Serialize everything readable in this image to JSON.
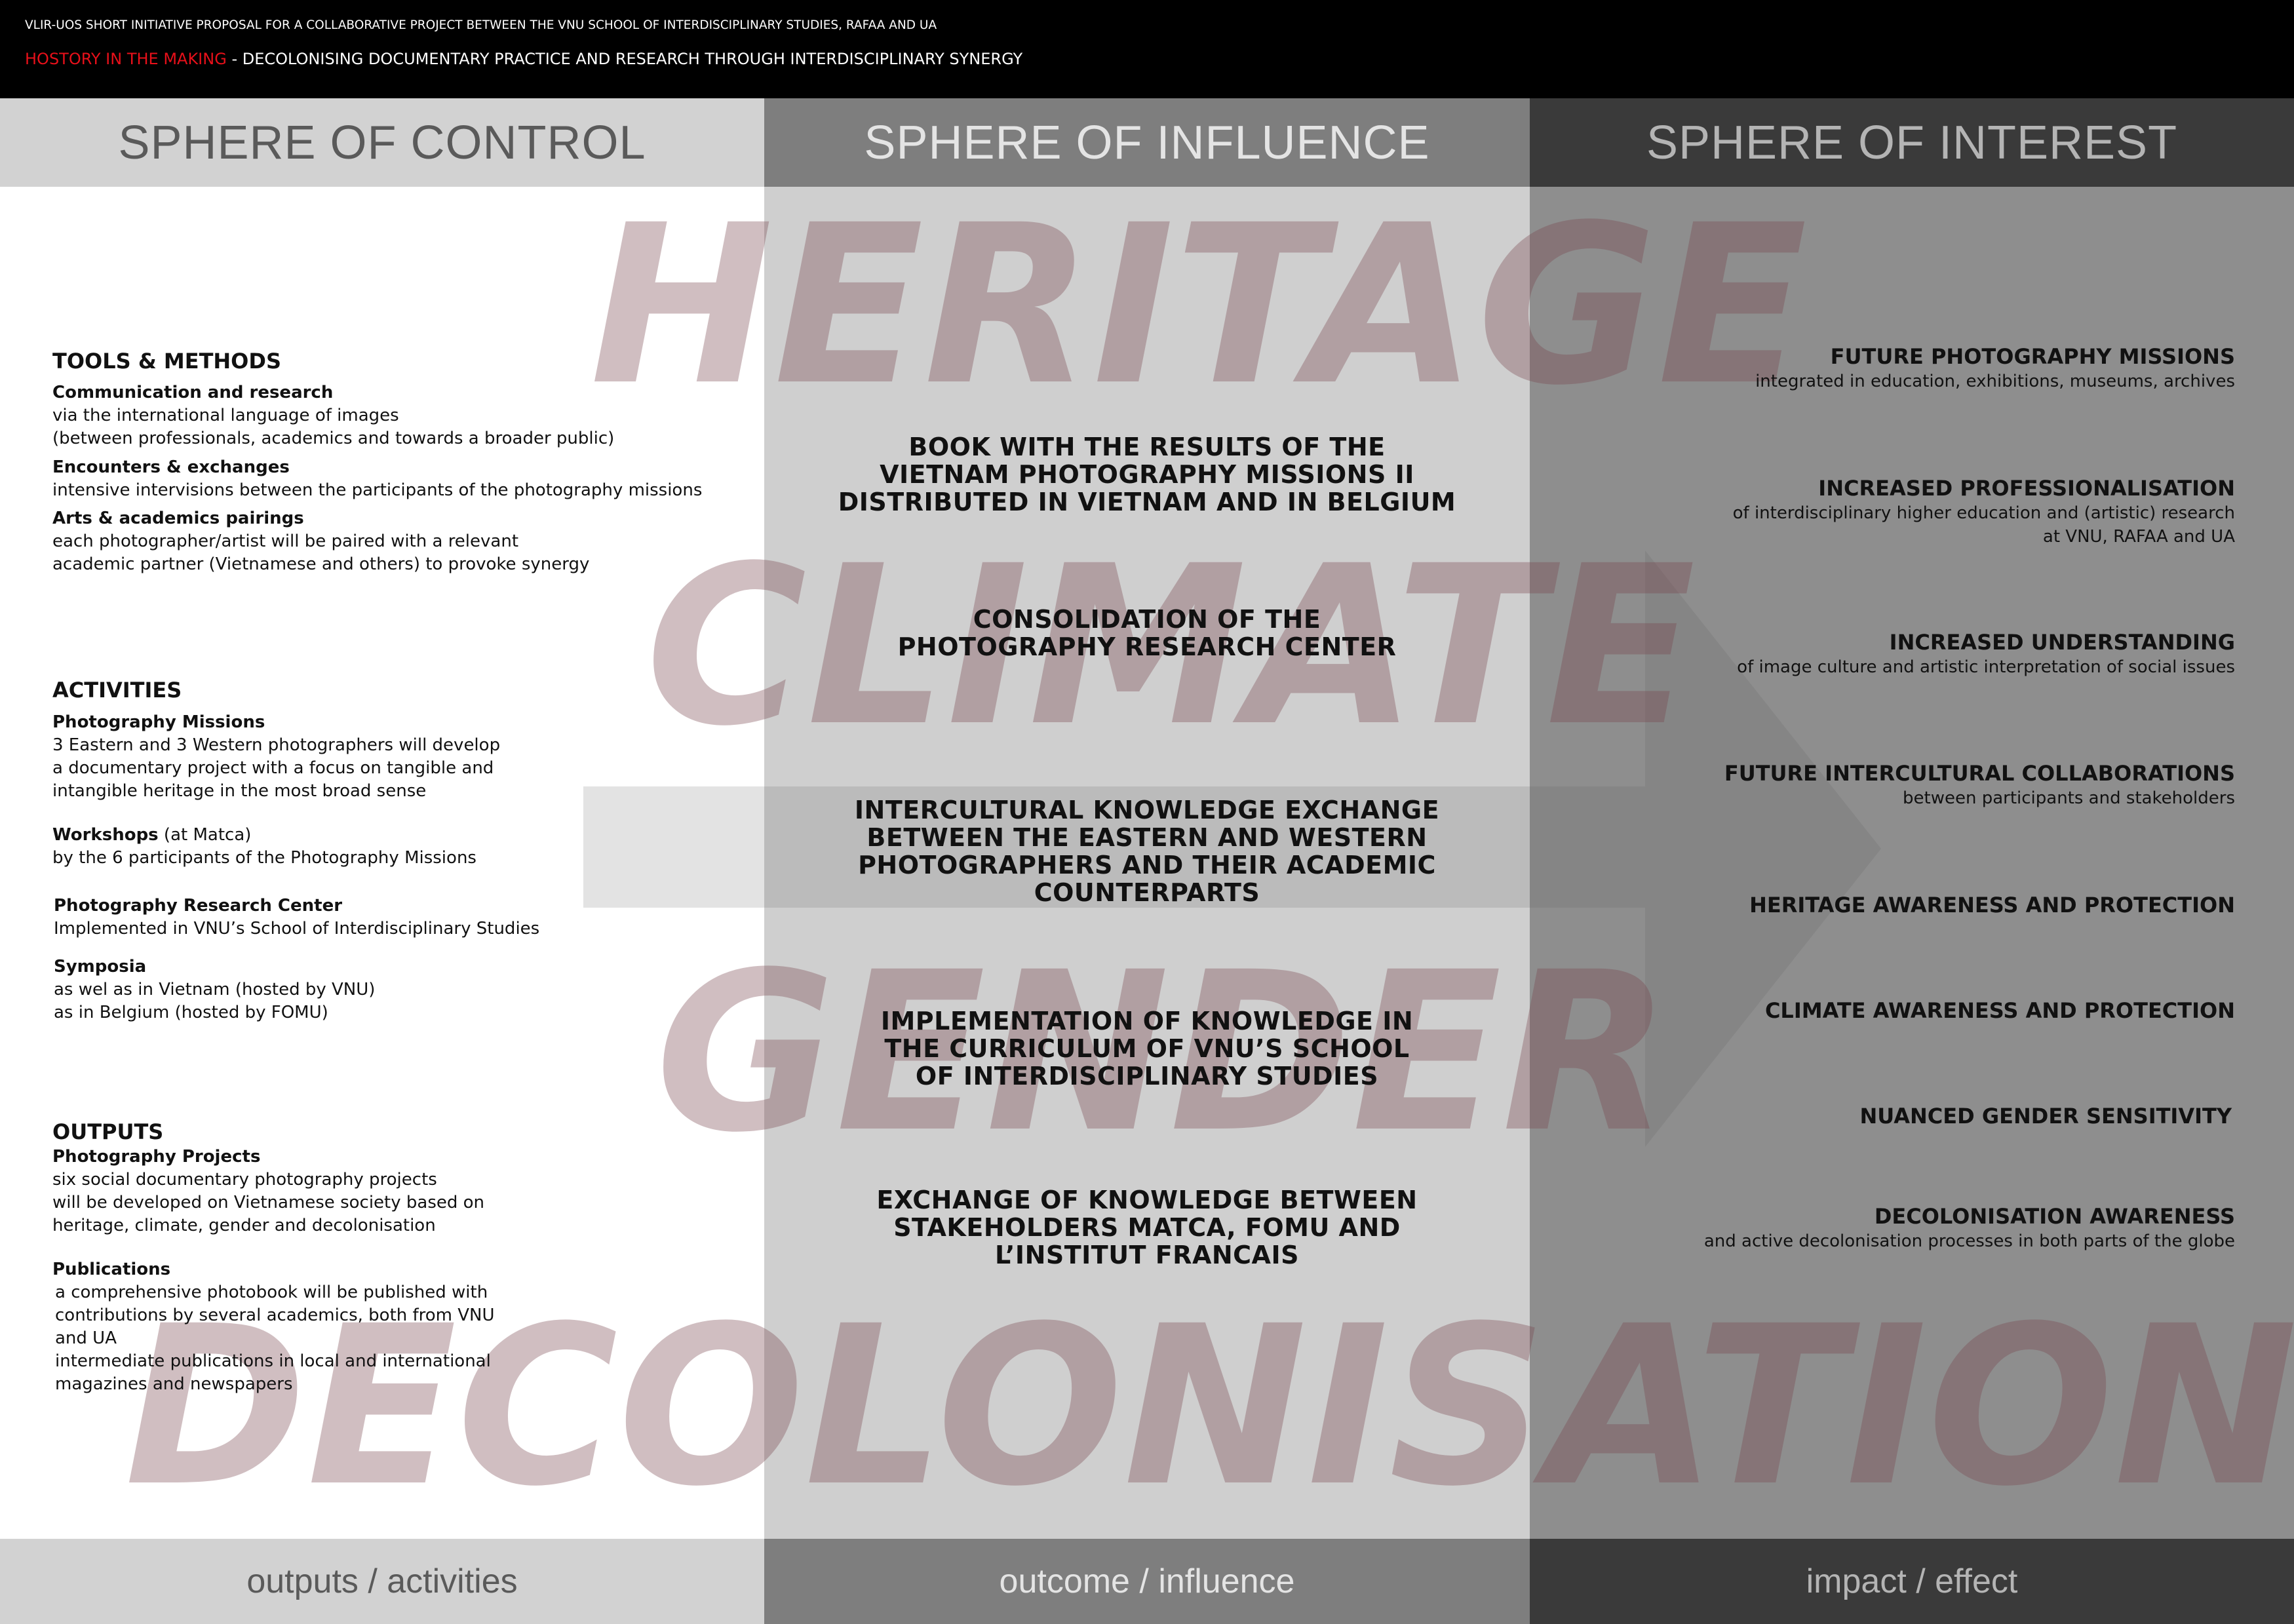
{
  "banner": {
    "line1": "VLIR-UOS SHORT INITIATIVE PROPOSAL FOR A COLLABORATIVE PROJECT BETWEEN THE VNU SCHOOL OF INTERDISCIPLINARY STUDIES, RAFAA AND UA",
    "highlight": "HOSTORY IN THE MAKING",
    "line2_rest": " - DECOLONISING DOCUMENTARY PRACTICE AND RESEARCH THROUGH INTERDISCIPLINARY SYNERGY",
    "highlight_color": "#e8101a"
  },
  "headers": [
    "SPHERE OF CONTROL",
    "SPHERE OF INFLUENCE",
    "SPHERE OF INTEREST"
  ],
  "footers": [
    "outputs / activities",
    "outcome / influence",
    "impact / effect"
  ],
  "watermarks": [
    "HERITAGE",
    "CLIMATE",
    "GENDER",
    "DECOLONISATION"
  ],
  "left": {
    "tools": {
      "heading": "TOOLS & METHODS",
      "items": [
        {
          "title": "Communication and research",
          "lines": [
            "via the international language of images",
            "(between professionals, academics and towards a broader public)"
          ]
        },
        {
          "title": "Encounters & exchanges",
          "lines": [
            "intensive intervisions between the participants of the photography missions"
          ]
        },
        {
          "title": "Arts & academics pairings",
          "lines": [
            "each photographer/artist will be paired with a relevant",
            "academic partner (Vietnamese and others) to provoke synergy"
          ]
        }
      ]
    },
    "activities": {
      "heading": "ACTIVITIES",
      "items": [
        {
          "title": "Photography Missions",
          "lines": [
            "3 Eastern and 3 Western photographers will develop",
            "a documentary project with a focus on tangible and",
            "intangible heritage in the most broad sense"
          ]
        },
        {
          "title": "Workshops",
          "title_suffix": " (at Matca)",
          "lines": [
            "by the 6 participants of the Photography Missions"
          ]
        },
        {
          "title": "Photography Research Center",
          "lines": [
            "Implemented in VNU’s School of Interdisciplinary Studies"
          ]
        },
        {
          "title": "Symposia",
          "lines": [
            "as wel as in Vietnam (hosted by VNU)",
            "as in Belgium (hosted by FOMU)"
          ]
        }
      ]
    },
    "outputs": {
      "heading": "OUTPUTS",
      "items": [
        {
          "title": "Photography Projects",
          "lines": [
            "six social documentary photography projects",
            "will be developed on Vietnamese society based on",
            "heritage, climate, gender and decolonisation"
          ]
        },
        {
          "title": "Publications",
          "lines": [
            "a comprehensive photobook will be published with",
            "contributions by several academics, both from VNU",
            "and UA",
            "intermediate publications in local and international",
            "magazines and newspapers"
          ]
        }
      ]
    }
  },
  "middle": [
    [
      "BOOK WITH THE RESULTS OF THE",
      "VIETNAM PHOTOGRAPHY MISSIONS II",
      "DISTRIBUTED IN VIETNAM AND IN BELGIUM"
    ],
    [
      "CONSOLIDATION OF THE",
      "PHOTOGRAPHY RESEARCH CENTER"
    ],
    [
      "INTERCULTURAL KNOWLEDGE EXCHANGE",
      "BETWEEN THE EASTERN AND WESTERN",
      "PHOTOGRAPHERS AND THEIR ACADEMIC",
      "COUNTERPARTS"
    ],
    [
      "IMPLEMENTATION OF KNOWLEDGE IN",
      "THE CURRICULUM OF VNU’S SCHOOL",
      "OF INTERDISCIPLINARY STUDIES"
    ],
    [
      "EXCHANGE OF KNOWLEDGE BETWEEN",
      "STAKEHOLDERS MATCA, FOMU AND",
      "L’INSTITUT FRANCAIS"
    ]
  ],
  "right": [
    {
      "title": "FUTURE PHOTOGRAPHY MISSIONS",
      "sub": [
        "integrated in education, exhibitions, museums, archives"
      ]
    },
    {
      "title": "INCREASED PROFESSIONALISATION",
      "sub": [
        "of interdisciplinary higher education and (artistic) research",
        "at VNU, RAFAA and UA"
      ]
    },
    {
      "title": "INCREASED UNDERSTANDING",
      "sub": [
        "of image culture and artistic interpretation of social issues"
      ]
    },
    {
      "title": "FUTURE INTERCULTURAL COLLABORATIONS",
      "sub": [
        "between participants and stakeholders"
      ]
    },
    {
      "title": "HERITAGE AWARENESS AND PROTECTION",
      "sub": []
    },
    {
      "title": "CLIMATE AWARENESS AND PROTECTION",
      "sub": []
    },
    {
      "title": "NUANCED GENDER SENSITIVITY",
      "sub": []
    },
    {
      "title": "DECOLONISATION AWARENESS",
      "sub": [
        "and active decolonisation processes in both parts of the globe"
      ]
    }
  ]
}
